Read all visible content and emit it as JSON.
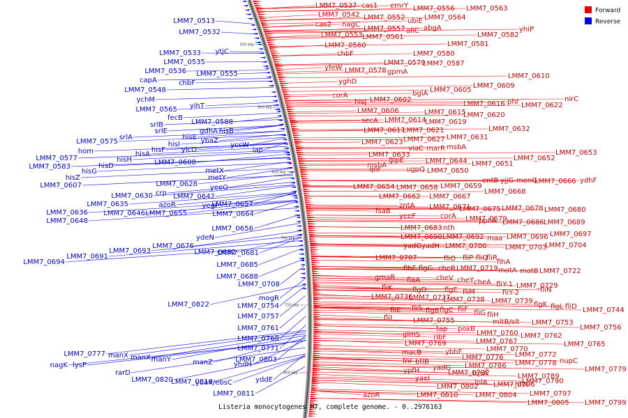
{
  "caption": "Listeria monocytogenes M7, complete genome. - 0..2976163",
  "legend": {
    "forward": {
      "label": "Forward",
      "color": "#ee0000"
    },
    "reverse": {
      "label": "Reverse",
      "color": "#0000ee"
    }
  },
  "ticks": [
    "550 kbp",
    "600 kbp",
    "650 kbp",
    "700 kbp",
    "750 kbp",
    "800 kbp"
  ],
  "forward_labels": [
    "LMM7_0537",
    "cas1",
    "emrY",
    "LMM7_0556",
    "LMM7_0563",
    "LMM7_0542",
    "LMM7_0552",
    "ubiE",
    "LMM7_0564",
    "cas2",
    "nagC",
    "LMM7_0557",
    "allC",
    "abgA",
    "LMM7_0553",
    "LMM7_0561",
    "yhiP",
    "LMM7_0582",
    "LMM7_0560",
    "LMM7_0581",
    "chbF",
    "LMM7_0580",
    "yfeW",
    "LMM7_0579",
    "LMM7_0587",
    "LMM7_0578",
    "gpmA",
    "yghD",
    "LMM7_0610",
    "LMM7_0609",
    "LMM7_0605",
    "bglA",
    "corA",
    "LMM7_0602",
    "hisJ",
    "nirC",
    "LMM7_0622",
    "phr",
    "LMM7_0616",
    "LMM7_0606",
    "LMM7_0615",
    "LMM7_0620",
    "secA",
    "LMM7_0614",
    "LMM7_0619",
    "LMM7_0617",
    "LMM7_0621",
    "LMM7_0632",
    "LMM7_0623",
    "LMM7_0627",
    "LMM7_0631",
    "viaC",
    "marR",
    "msbA",
    "LMM7_0633",
    "LMM7_0653",
    "msbA",
    "glpE",
    "LMM7_0644",
    "LMM7_0651",
    "LMM7_0652",
    "qor",
    "ugpQ",
    "LMM7_0650",
    "entB",
    "yjjG",
    "menG",
    "LMM7_0666",
    "ydhF",
    "LMM7_0654",
    "LMM7_0658",
    "LMM7_0659",
    "LMM7_0668",
    "LMM7_0662",
    "LMM7_0667",
    "zntA",
    "LMM7_0671",
    "fsaB",
    "LMM7_0675",
    "LMM7_0678",
    "LMM7_0680",
    "yeeF",
    "corA",
    "LMM7_0679",
    "pphA",
    "LMM7_0686",
    "LMM7_0689",
    "LMM7_0683",
    "nth",
    "LMM7_0690",
    "LMM7_0692",
    "maa",
    "LMM7_0696",
    "LMM7_0697",
    "yadG",
    "yadH",
    "LMM7_0700",
    "LMM7_0703",
    "LMM7_0704",
    "LMM7_0707",
    "fliO",
    "fliP",
    "fliQ",
    "fliR",
    "flhA",
    "flhF",
    "flgG",
    "cheR",
    "LMM7_0719",
    "motA",
    "motB",
    "LMM7_0722",
    "gmaR",
    "flaA",
    "cheV",
    "cheY",
    "cheA",
    "fliY-1",
    "LMM7_0729",
    "fliK",
    "flgD",
    "flgE",
    "fliM",
    "fliY-2",
    "fliN",
    "LMM7_0736",
    "LMM7_0737",
    "LMM7_0738",
    "LMM7_0739",
    "flgK",
    "flgL",
    "fliD",
    "LMM7_0744",
    "fliE",
    "fliS",
    "flgB",
    "flgC",
    "fliF",
    "fliG",
    "fliH",
    "fliI",
    "LMM7_0755",
    "mltB/slt",
    "LMM7_0753",
    "LMM7_0756",
    "tap",
    "poxB",
    "glmS",
    "LMM7_0760",
    "LMM7_0762",
    "ribF",
    "LMM7_0767",
    "LMM7_0769",
    "LMM7_0765",
    "ybhF",
    "LMM7_0770",
    "macB",
    "LMM7_0772",
    "LMM7_0776",
    "nupC",
    "LMM7_0778",
    "fnr",
    "btlB",
    "LMM7_0779",
    "ypfH",
    "yadG",
    "LMM7_0786",
    "LMM7_0789",
    "yaeI",
    "LMM7_0792",
    "tqsA",
    "LMM7_0790",
    "lplA",
    "LMM7_0796",
    "hflX",
    "LMM7_0802",
    "LMM7_0797",
    "azoR",
    "LMM7_0810",
    "LMM7_0804",
    "LMM7_0805",
    "LMM7_0799"
  ],
  "reverse_labels": [
    "LMM7_0513",
    "LMM7_0532",
    "LMM7_0533",
    "ytjC",
    "LMM7_0535",
    "LMM7_0536",
    "LMM7_0555",
    "capA",
    "chbF",
    "LMM7_0548",
    "ychM",
    "LMM7_0565",
    "yihT",
    "fecB",
    "srlB",
    "LMM7_0588",
    "srlE",
    "gdhA",
    "hisB",
    "LMM7_0575",
    "srlA",
    "hisE",
    "ybaZ",
    "yccW",
    "hom",
    "hisI",
    "yicO",
    "iap",
    "LMM7_0577",
    "hisF",
    "LMM7_0583",
    "hisA",
    "LMM7_0608",
    "hisH",
    "hisD",
    "hisG",
    "metX",
    "hisZ",
    "metY",
    "LMM7_0607",
    "LMM7_0628",
    "yeeO",
    "crp",
    "LMM7_0642",
    "LMM7_0630",
    "azoR",
    "yegI",
    "LMM7_0657",
    "LMM7_0635",
    "LMM7_0636",
    "LMM7_0646",
    "LMM7_0655",
    "LMM7_0664",
    "LMM7_0648",
    "LMM7_0656",
    "ydeN",
    "LMM7_0676",
    "LMM7_0681",
    "LMM7_0693",
    "LMM7_0682",
    "LMM7_0691",
    "LMM7_0685",
    "LMM7_0694",
    "LMM7_0688",
    "LMM7_0708",
    "mogR",
    "LMM7_0754",
    "LMM7_0757",
    "LMM7_0761",
    "LMM7_0768",
    "LMM7_0771",
    "LMM7_0777",
    "manX",
    "manX",
    "manY",
    "manZ",
    "LMM7_0803",
    "yhdH",
    "nagK",
    "lysP",
    "rarD",
    "LMM7_0820",
    "LMM7_0819",
    "ybaK/ebsC",
    "yddE",
    "LMM7_0811",
    "LMM7_0822"
  ]
}
